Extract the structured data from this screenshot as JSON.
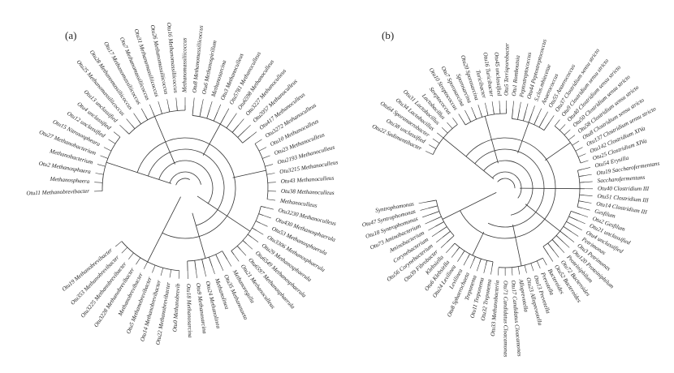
{
  "panels": [
    {
      "id": "a",
      "label": "(a)",
      "tips": [
        "Otu11 Methanobrevibacter",
        "Methanosphaera",
        "Otu2 Methanosphaera",
        "Methanobacterium",
        "Otu27 Methanobacterium",
        "Otu15 Nitrosospheara",
        "Otu12 unclassified",
        "Otu4 unclassified",
        "Otu13 unclassified",
        "Otu25 Methanomassiliicoccus",
        "Otu28 Methanomassiliicoccus",
        "Otu17 Methanomassiliicoccus",
        "Otu7 Methanomassiliicoccus",
        "Otu31 Methanomassiliicoccus",
        "Otu26 Methanomassiliicoccus",
        "Otu16 Methanomassiliicoccus",
        "Methanomassiliicoccus",
        "Otu8 Methanomassiliicoccus",
        "Otu6 Methanospirillum",
        "Methanosarcina",
        "Otu3 Methanoculleus",
        "Otu5781 Methanoculleus",
        "Otu6598 Methanoculleus",
        "Otu3227 Methanoculleus",
        "Otu2057 Methanoculleus",
        "Otu417 Methanoculleus",
        "Otu3272 Methanoculleus",
        "Otu10 Methanoculleus",
        "Otu23 Methanoculleus",
        "Otu2193 Methanoculleus",
        "Otu3215 Methanoculleus",
        "Otu43 Methanoculleus",
        "Otu38 Methanoculleus",
        "Methanoculleus",
        "Otu3230 Methanoculleus",
        "Otu430 Methanosphaerula",
        "Otu53 Methanosphaerula",
        "Otu3306 Methanosphaerula",
        "Otu29 Methanosphaerula",
        "Otu6549 Methanosphaerula",
        "Otu6597 Methanosphaerula",
        "Otu21 Methanoculleus",
        "Methanoregulla",
        "Otu35 Methanosaeta",
        "Methanolinea",
        "Otu24 Methanolinea",
        "Otu9 Methanosarcina",
        "Otu18 Methanosarcina",
        "Otu0 Methanobrevib",
        "Otu22 Methanobrevibacter",
        "Otu14 Methanobrevibacter",
        "Otu5 Methanobrevibacter",
        "Methanobrevibacter",
        "Otu3228 Methanobrevibacter",
        "Otu3225 Methanobrevibacter",
        "Otu353 Methanobrevibacter",
        "Otu19 Methanobrevibacter"
      ]
    },
    {
      "id": "b",
      "label": "(b)",
      "tips": [
        "Otu22 Sedimentibacter",
        "Otu38 unclassified",
        "Otu64 Sporanaerobacter",
        "Otu34 Lactobacillus",
        "Otu31 Lactobacillus",
        "Lactobacillus",
        "Streptococcus",
        "Otu10 Streptococcus",
        "Otu7 Sporosarcina",
        "Sporosarcina",
        "Otu20 Sporosarcina",
        "Turicibacter",
        "Otu16 Turicibacter",
        "Otu45 unclassified",
        "Otu5 Terrisporobacter",
        "Otu1 Romboutsia",
        "Peptostreptococcus",
        "Otu44 Peptostreptococcus",
        "S.clos.mhiecetae",
        "Anaerococcus",
        "Otu55 Anaerococcus",
        "Otu37 Clostridium sensu stricto",
        "Otu9 Clostridium sensu stricto",
        "Otu40 Clostridium sensu stricto",
        "Otu50 Clostridium sensu stricto",
        "Otu58 Clostridium sensu stricto",
        "Otu8 Clostridium sensu stricto",
        "Otu137 Clostridium sensu stricto",
        "Otu142 Clostridium XIVa",
        "Otu25 Clostridium XIVa",
        "Otu54 Erysilla",
        "Otu19 Saccharofermentans",
        "Saccharofermentans",
        "Otu40 Clostridium III",
        "Otu51 Clostridium III",
        "Otu14 Clostridium III",
        "Gesfilum",
        "Otu2 Gesfilum",
        "Otu21 unclassified",
        "Otu4 unclassified",
        "Petrimonas",
        "Otu3 Petrimonas",
        "Otu120 Proteiniphilum",
        "Proteiniphilum",
        "Otu72 Bacteroides",
        "Otu52 Bacteroides",
        "Bacteroides",
        "Prevotella",
        "Otu13 Prevotella",
        "Otu23 Alloprevotella",
        "Alloprevotella",
        "Otu17 Candidatus Cloacamonas",
        "Otu71 Candidatus Cloacamonas",
        "Otu33 Methanobacteria",
        "Otu32 Treponema",
        "Otu11 Treponema",
        "Treponema",
        "Otu8 Sphaerochaeta",
        "Levilinea",
        "Otu24 Levilinea",
        "Otu6 Klebsiella",
        "Klebsiella",
        "Otu39 Fibrobacter",
        "Otu56 Corynebacterium",
        "Corynebacterium",
        "Aminobacterium",
        "Otu73 Aminobacterium",
        "Otu18 Syntrophomonas",
        "Otu47 Syntrophomonas",
        "Syntrophomonas"
      ]
    }
  ]
}
